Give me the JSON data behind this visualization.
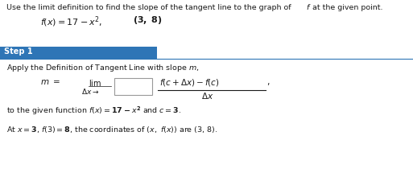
{
  "bg_color": "#ffffff",
  "text_color": "#1a1a1a",
  "step_bar_color": "#2e75b6",
  "step_bar_text": "Step 1",
  "step_bar_text_color": "#ffffff",
  "line_color": "#2e75b6",
  "header_text": "Use the limit definition to find the slope of the tangent line to the graph of f at the given point.",
  "fig_width": 5.13,
  "fig_height": 2.1,
  "dpi": 100
}
